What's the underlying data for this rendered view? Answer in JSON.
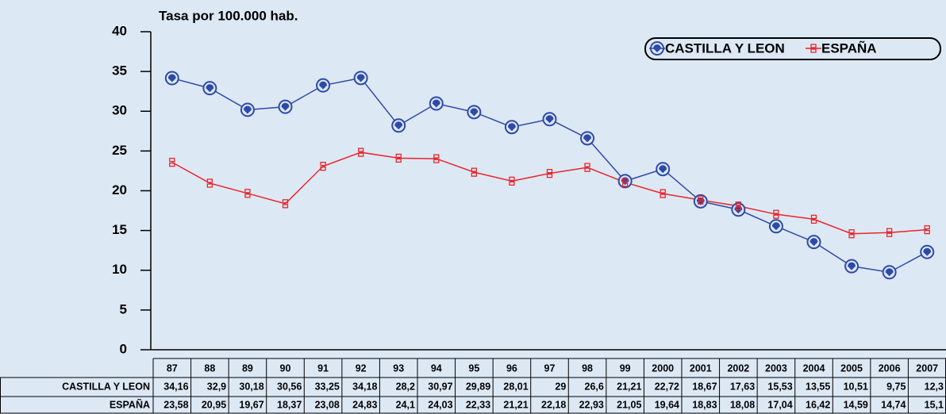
{
  "chart_data": {
    "type": "line",
    "ylabel": "Tasa por 100.000 hab.",
    "categories": [
      "87",
      "88",
      "89",
      "90",
      "91",
      "92",
      "93",
      "94",
      "95",
      "96",
      "97",
      "98",
      "99",
      "2000",
      "2001",
      "2002",
      "2003",
      "2004",
      "2005",
      "2006",
      "2007"
    ],
    "series": [
      {
        "name": "CASTILLA Y LEON",
        "color": "#2e4aa8",
        "values": [
          34.16,
          32.9,
          30.18,
          30.56,
          33.25,
          34.18,
          28.2,
          30.97,
          29.89,
          28.01,
          29,
          26.6,
          21.21,
          22.72,
          18.67,
          17.63,
          15.53,
          13.55,
          10.51,
          9.75,
          12.3
        ],
        "value_labels": [
          "34,16",
          "32,9",
          "30,18",
          "30,56",
          "33,25",
          "34,18",
          "28,2",
          "30,97",
          "29,89",
          "28,01",
          "29",
          "26,6",
          "21,21",
          "22,72",
          "18,67",
          "17,63",
          "15,53",
          "13,55",
          "10,51",
          "9,75",
          "12,3"
        ]
      },
      {
        "name": "ESPAÑA",
        "color": "#e8262a",
        "values": [
          23.58,
          20.95,
          19.67,
          18.37,
          23.08,
          24.83,
          24.1,
          24.03,
          22.33,
          21.21,
          22.18,
          22.93,
          21.05,
          19.64,
          18.83,
          18.08,
          17.04,
          16.42,
          14.59,
          14.74,
          15.1
        ],
        "value_labels": [
          "23,58",
          "20,95",
          "19,67",
          "18,37",
          "23,08",
          "24,83",
          "24,1",
          "24,03",
          "22,33",
          "21,21",
          "22,18",
          "22,93",
          "21,05",
          "19,64",
          "18,83",
          "18,08",
          "17,04",
          "16,42",
          "14,59",
          "14,74",
          "15,1"
        ]
      }
    ],
    "ylim": [
      0,
      40
    ],
    "yticks": [
      0,
      5,
      10,
      15,
      20,
      25,
      30,
      35,
      40
    ],
    "legend": "top-right"
  }
}
